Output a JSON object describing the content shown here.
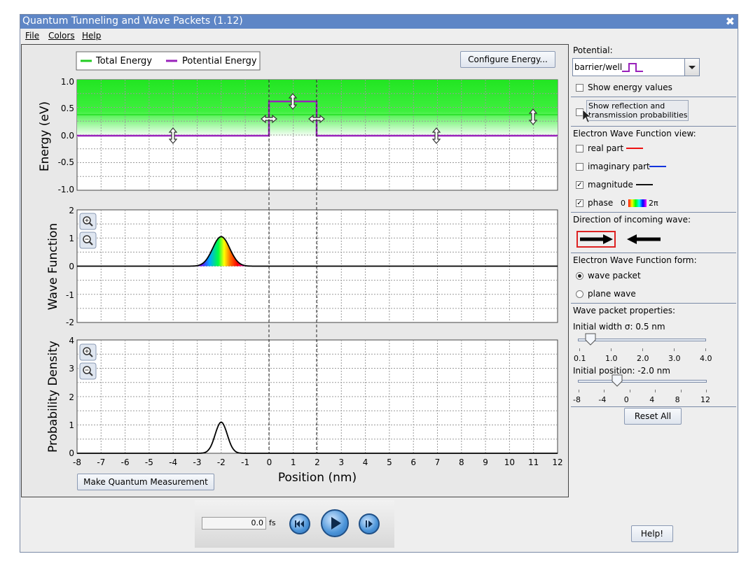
{
  "window": {
    "title": "Quantum Tunneling and Wave Packets (1.12)",
    "close_glyph": "✖",
    "menu": [
      "File",
      "Colors",
      "Help"
    ]
  },
  "energy_plot": {
    "legend_total": "Total Energy",
    "legend_potential": "Potential Energy",
    "configure_button": "Configure Energy...",
    "ylabel": "Energy (eV)",
    "yticks": [
      "1.0",
      "0.5",
      "0.0",
      "-0.5",
      "-1.0"
    ],
    "colors": {
      "total": "#22cc22",
      "potential": "#9922bb"
    }
  },
  "wave_plot": {
    "ylabel": "Wave Function",
    "yticks": [
      "2",
      "1",
      "0",
      "-1",
      "-2"
    ]
  },
  "prob_plot": {
    "ylabel": "Probability Density",
    "yticks": [
      "4",
      "3",
      "2",
      "1",
      "0"
    ]
  },
  "xaxis": {
    "label": "Position (nm)",
    "ticks": [
      "-8",
      "-7",
      "-6",
      "-5",
      "-4",
      "-3",
      "-2",
      "-1",
      "0",
      "1",
      "2",
      "3",
      "4",
      "5",
      "6",
      "7",
      "8",
      "9",
      "10",
      "11",
      "12"
    ]
  },
  "measure_button": "Make Quantum Measurement",
  "side": {
    "potential_label": "Potential:",
    "potential_value": "barrier/well",
    "show_energy_values": "Show energy values",
    "show_reflection_1": "Show reflection and",
    "show_reflection_2": "transmission probabilities",
    "view_label": "Electron Wave Function view:",
    "real_part": "real part",
    "imaginary_part": "imaginary part",
    "magnitude": "magnitude",
    "phase": "phase",
    "phase_start": "0",
    "phase_end": "2π",
    "direction_label": "Direction of incoming wave:",
    "form_label": "Electron Wave Function form:",
    "wave_packet": "wave packet",
    "plane_wave": "plane wave",
    "props_label": "Wave packet properties:",
    "width_label": "Initial width σ: 0.5 nm",
    "width_ticks": [
      "0.1",
      "1.0",
      "2.0",
      "3.0",
      "4.0"
    ],
    "position_label": "Initial position: -2.0 nm",
    "position_ticks": [
      "-8",
      "-4",
      "0",
      "4",
      "8",
      "12"
    ],
    "reset_button": "Reset All",
    "help_button": "Help!",
    "colors": {
      "real": "#ee1111",
      "imaginary": "#1133dd",
      "magnitude": "#111111"
    },
    "checked": {
      "real": false,
      "imaginary": false,
      "magnitude": true,
      "phase": true,
      "energy_values": false,
      "reflection": false
    }
  },
  "clock": {
    "time": "0.0",
    "unit": "fs"
  }
}
